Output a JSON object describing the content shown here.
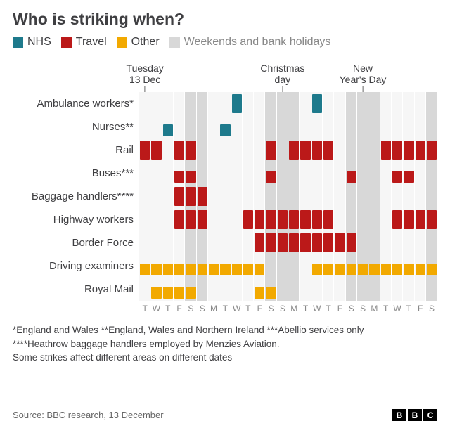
{
  "title": "Who is striking when?",
  "legend": {
    "nhs": {
      "label": "NHS",
      "color": "#1e7a8c"
    },
    "travel": {
      "label": "Travel",
      "color": "#bb1919"
    },
    "other": {
      "label": "Other",
      "color": "#f2a900"
    },
    "weekend": {
      "label": "Weekends and bank holidays",
      "color": "#d8d8d8"
    }
  },
  "calendar": {
    "start_note": "Columns run Tue 13 Dec 2022 → Sat 7 Jan 2023 (26 days)",
    "day_letters": [
      "T",
      "W",
      "T",
      "F",
      "S",
      "S",
      "M",
      "T",
      "W",
      "T",
      "F",
      "S",
      "S",
      "M",
      "T",
      "W",
      "T",
      "F",
      "S",
      "S",
      "M",
      "T",
      "W",
      "T",
      "F",
      "S"
    ],
    "grey_cols": [
      4,
      5,
      11,
      12,
      13,
      18,
      19,
      20,
      25
    ],
    "annotations": [
      {
        "label_top": "Tuesday",
        "label_bottom": "13 Dec",
        "col": 0
      },
      {
        "label_top": "Christmas",
        "label_bottom": "day",
        "col": 12
      },
      {
        "label_top": "New",
        "label_bottom": "Year's Day",
        "col": 19
      }
    ]
  },
  "colors": {
    "nhs": "#1e7a8c",
    "travel": "#bb1919",
    "other": "#f2a900",
    "weekend_bg": "#d8d8d8",
    "row_bg": "#f6f6f6",
    "col_gap": "#ffffff"
  },
  "bar_height": {
    "full": 27,
    "half": 17
  },
  "rows": [
    {
      "label": "Ambulance workers*",
      "cat": "nhs",
      "cells": [
        0,
        0,
        0,
        0,
        0,
        0,
        0,
        0,
        1,
        0,
        0,
        0,
        0,
        0,
        0,
        1,
        0,
        0,
        0,
        0,
        0,
        0,
        0,
        0,
        0,
        0
      ],
      "half": false
    },
    {
      "label": "Nurses**",
      "cat": "nhs",
      "cells": [
        0,
        0,
        1,
        0,
        0,
        0,
        0,
        1,
        0,
        0,
        0,
        0,
        0,
        0,
        0,
        0,
        0,
        0,
        0,
        0,
        0,
        0,
        0,
        0,
        0,
        0
      ],
      "half": true
    },
    {
      "label": "Rail",
      "cat": "travel",
      "cells": [
        1,
        1,
        0,
        1,
        1,
        0,
        0,
        0,
        0,
        0,
        0,
        1,
        0,
        1,
        1,
        1,
        1,
        0,
        0,
        0,
        0,
        1,
        1,
        1,
        1,
        1
      ],
      "half": false
    },
    {
      "label": "Buses***",
      "cat": "travel",
      "cells": [
        0,
        0,
        0,
        1,
        1,
        0,
        0,
        0,
        0,
        0,
        0,
        1,
        0,
        0,
        0,
        0,
        0,
        0,
        1,
        0,
        0,
        0,
        1,
        1,
        0,
        0
      ],
      "half": true
    },
    {
      "label": "Baggage handlers****",
      "cat": "travel",
      "cells": [
        0,
        0,
        0,
        1,
        1,
        1,
        0,
        0,
        0,
        0,
        0,
        0,
        0,
        0,
        0,
        0,
        0,
        0,
        0,
        0,
        0,
        0,
        0,
        0,
        0,
        0
      ],
      "half": false
    },
    {
      "label": "Highway workers",
      "cat": "travel",
      "cells": [
        0,
        0,
        0,
        1,
        1,
        1,
        0,
        0,
        0,
        1,
        1,
        1,
        1,
        1,
        1,
        1,
        1,
        0,
        0,
        0,
        0,
        0,
        1,
        1,
        1,
        1
      ],
      "half": false
    },
    {
      "label": "Border Force",
      "cat": "travel",
      "cells": [
        0,
        0,
        0,
        0,
        0,
        0,
        0,
        0,
        0,
        0,
        1,
        1,
        1,
        1,
        1,
        1,
        1,
        1,
        1,
        0,
        0,
        0,
        0,
        0,
        0,
        0
      ],
      "half": false
    },
    {
      "label": "Driving examiners",
      "cat": "other",
      "cells": [
        1,
        1,
        1,
        1,
        1,
        1,
        1,
        1,
        1,
        1,
        1,
        0,
        0,
        0,
        0,
        1,
        1,
        1,
        1,
        1,
        1,
        1,
        1,
        1,
        1,
        1
      ],
      "half": true
    },
    {
      "label": "Royal Mail",
      "cat": "other",
      "cells": [
        0,
        1,
        1,
        1,
        1,
        0,
        0,
        0,
        0,
        0,
        1,
        1,
        0,
        0,
        0,
        0,
        0,
        0,
        0,
        0,
        0,
        0,
        0,
        0,
        0,
        0
      ],
      "half": true
    }
  ],
  "footnotes": [
    "*England and Wales  **England, Wales and Northern Ireland  ***Abellio services only",
    "****Heathrow baggage handlers employed by Menzies Aviation.",
    "Some strikes affect different areas on different dates"
  ],
  "source": "Source: BBC research, 13 December",
  "logo_letters": [
    "B",
    "B",
    "C"
  ]
}
